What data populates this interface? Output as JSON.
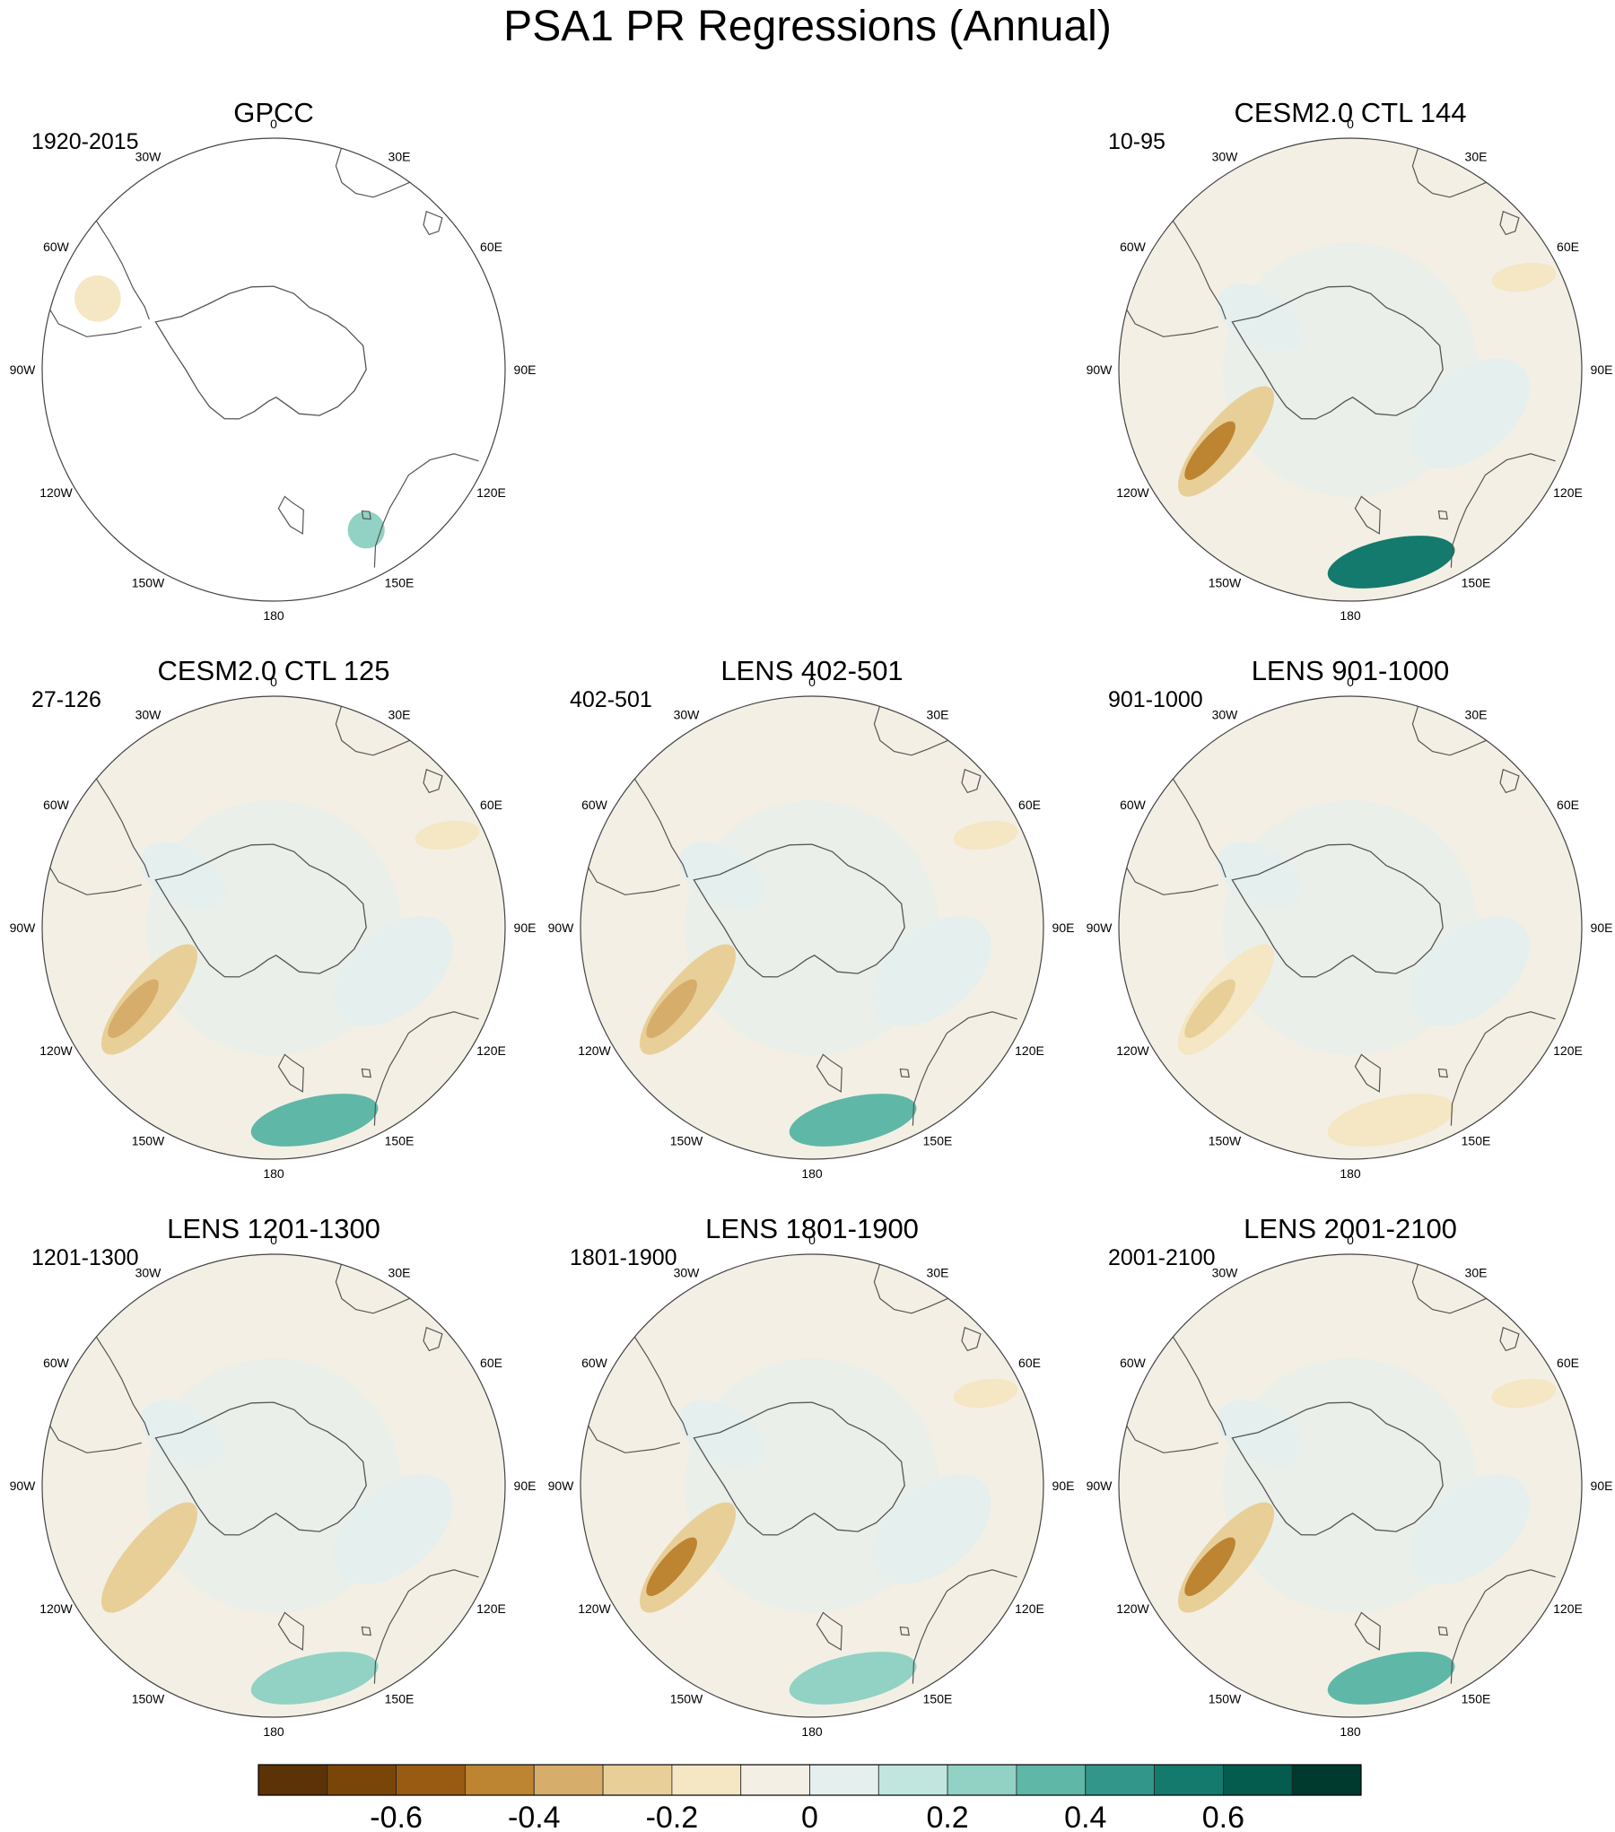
{
  "title": "PSA1 PR Regressions (Annual)",
  "lon_labels": [
    "0",
    "30E",
    "60E",
    "90E",
    "120E",
    "150E",
    "180",
    "150W",
    "120W",
    "90W",
    "60W",
    "30W"
  ],
  "panels": [
    {
      "title": "GPCC",
      "period": "1920-2015",
      "dataset": "obs"
    },
    {
      "title": "",
      "period": "",
      "dataset": "empty"
    },
    {
      "title": "CESM2.0 CTL 144",
      "period": "10-95",
      "dataset": "model"
    },
    {
      "title": "CESM2.0 CTL 125",
      "period": "27-126",
      "dataset": "model"
    },
    {
      "title": "LENS 402-501",
      "period": "402-501",
      "dataset": "model"
    },
    {
      "title": "LENS 901-1000",
      "period": "901-1000",
      "dataset": "model"
    },
    {
      "title": "LENS 1201-1300",
      "period": "1201-1300",
      "dataset": "model"
    },
    {
      "title": "LENS 1801-1900",
      "period": "1801-1900",
      "dataset": "model"
    },
    {
      "title": "LENS 2001-2100",
      "period": "2001-2100",
      "dataset": "model"
    }
  ],
  "chart_data": {
    "type": "heatmap",
    "projection": "south polar stereographic",
    "variable": "PR regression onto PSA1",
    "colorbar": {
      "levels": [
        -0.7,
        -0.6,
        -0.5,
        -0.4,
        -0.3,
        -0.2,
        -0.1,
        0,
        0.1,
        0.2,
        0.3,
        0.4,
        0.5,
        0.6,
        0.7
      ],
      "tick_labels": [
        "-0.6",
        "-0.4",
        "-0.2",
        "0",
        "0.2",
        "0.4",
        "0.6"
      ],
      "tick_values": [
        -0.6,
        -0.4,
        -0.2,
        0,
        0.2,
        0.4,
        0.6
      ],
      "colors": [
        "#5b3307",
        "#7a4509",
        "#995a12",
        "#bd8432",
        "#d6ad6a",
        "#e8cf98",
        "#f5e6c4",
        "#f3efe4",
        "#e4efee",
        "#c1e6df",
        "#91d2c4",
        "#5fb7a7",
        "#32968a",
        "#137a6d",
        "#035c4e",
        "#00392e"
      ]
    },
    "panels": [
      {
        "name": "GPCC",
        "values": {
          "pacific_dry": -0.2,
          "pacific_dry_peak": -0.2,
          "nz_wet": 0.2,
          "southamerica": -0.2
        }
      },
      {
        "name": "CESM2.0 CTL 144",
        "values": {
          "pacific_dry": -0.3,
          "pacific_dry_peak": -0.5,
          "nz_wet": 0.5,
          "indian": -0.2
        }
      },
      {
        "name": "CESM2.0 CTL 125",
        "values": {
          "pacific_dry": -0.3,
          "pacific_dry_peak": -0.4,
          "nz_wet": 0.3,
          "indian": -0.2
        }
      },
      {
        "name": "LENS 402-501",
        "values": {
          "pacific_dry": -0.3,
          "pacific_dry_peak": -0.4,
          "nz_wet": 0.3,
          "indian": -0.2
        }
      },
      {
        "name": "LENS 901-1000",
        "values": {
          "pacific_dry": -0.2,
          "pacific_dry_peak": -0.3,
          "nz_wet": -0.2,
          "indian": -0.1
        }
      },
      {
        "name": "LENS 1201-1300",
        "values": {
          "pacific_dry": -0.3,
          "pacific_dry_peak": -0.3,
          "nz_wet": 0.2,
          "indian": -0.1
        }
      },
      {
        "name": "LENS 1801-1900",
        "values": {
          "pacific_dry": -0.3,
          "pacific_dry_peak": -0.5,
          "nz_wet": 0.2,
          "indian": -0.2
        }
      },
      {
        "name": "LENS 2001-2100",
        "values": {
          "pacific_dry": -0.3,
          "pacific_dry_peak": -0.5,
          "nz_wet": 0.3,
          "indian": -0.2
        }
      }
    ]
  }
}
